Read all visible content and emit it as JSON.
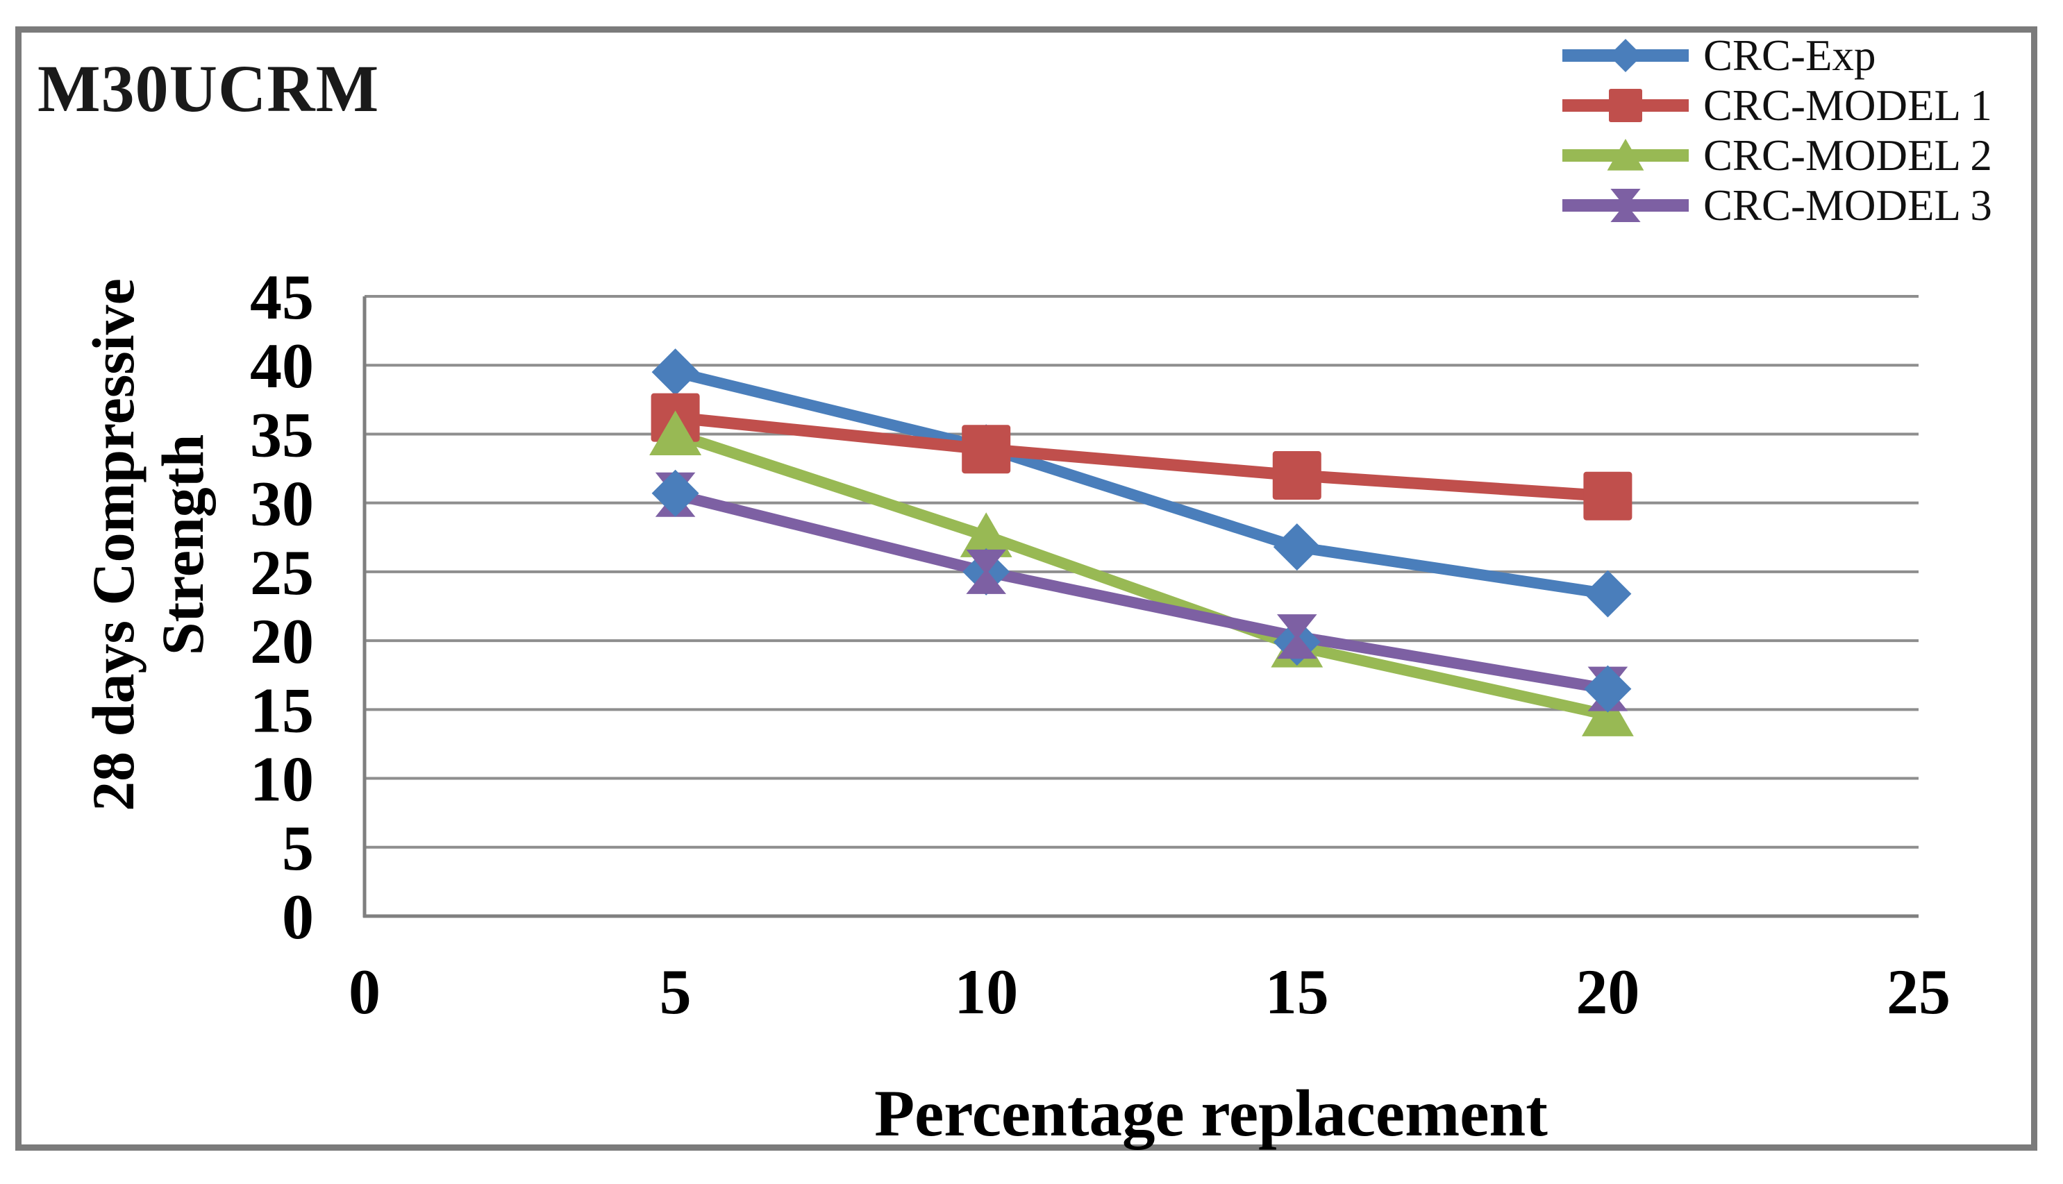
{
  "figure": {
    "background": "#ffffff",
    "border_color": "#7b7b7b"
  },
  "chart_data": {
    "type": "line",
    "title": "M30UCRM",
    "xlabel": "Percentage replacement",
    "ylabel": "28 days Compressive Strength",
    "ylabel_lines": [
      "28 days Compressive",
      "Strength"
    ],
    "x": [
      5,
      10,
      15,
      20
    ],
    "xlim": [
      0,
      25
    ],
    "ylim": [
      0,
      45
    ],
    "x_ticks": [
      0,
      5,
      10,
      15,
      20,
      25
    ],
    "y_ticks": [
      45,
      40,
      35,
      30,
      25,
      20,
      15,
      10,
      5,
      0
    ],
    "grid": true,
    "legend_position": "top-right",
    "gridline_color": "#8e8e8e",
    "axis_color": "#7f7f7f",
    "series": [
      {
        "name": "CRC-Exp",
        "color": "#4A7EBB",
        "marker": "diamond",
        "in_legend": true,
        "values": [
          39.5,
          34.0,
          26.8,
          23.4
        ]
      },
      {
        "name": "CRC-MODEL 1",
        "color": "#C04F4C",
        "marker": "square",
        "in_legend": true,
        "values": [
          36.2,
          33.9,
          32.0,
          30.5
        ]
      },
      {
        "name": "CRC-MODEL 2",
        "color": "#98B954",
        "marker": "triangle",
        "in_legend": true,
        "values": [
          35.0,
          27.6,
          19.6,
          14.6
        ]
      },
      {
        "name": "CRC-MODEL 3",
        "color": "#7D60A3",
        "marker": "xmark",
        "in_legend": true,
        "values": [
          30.6,
          25.0,
          20.3,
          16.5
        ]
      },
      {
        "name": "unlabeled blue diamond series",
        "color": "#4A7EBB",
        "marker": "diamond",
        "in_legend": false,
        "values": [
          30.7,
          25.0,
          19.9,
          16.5
        ]
      }
    ]
  },
  "legend": {
    "items": [
      "CRC-Exp",
      "CRC-MODEL 1",
      "CRC-MODEL 2",
      "CRC-MODEL 3"
    ]
  }
}
